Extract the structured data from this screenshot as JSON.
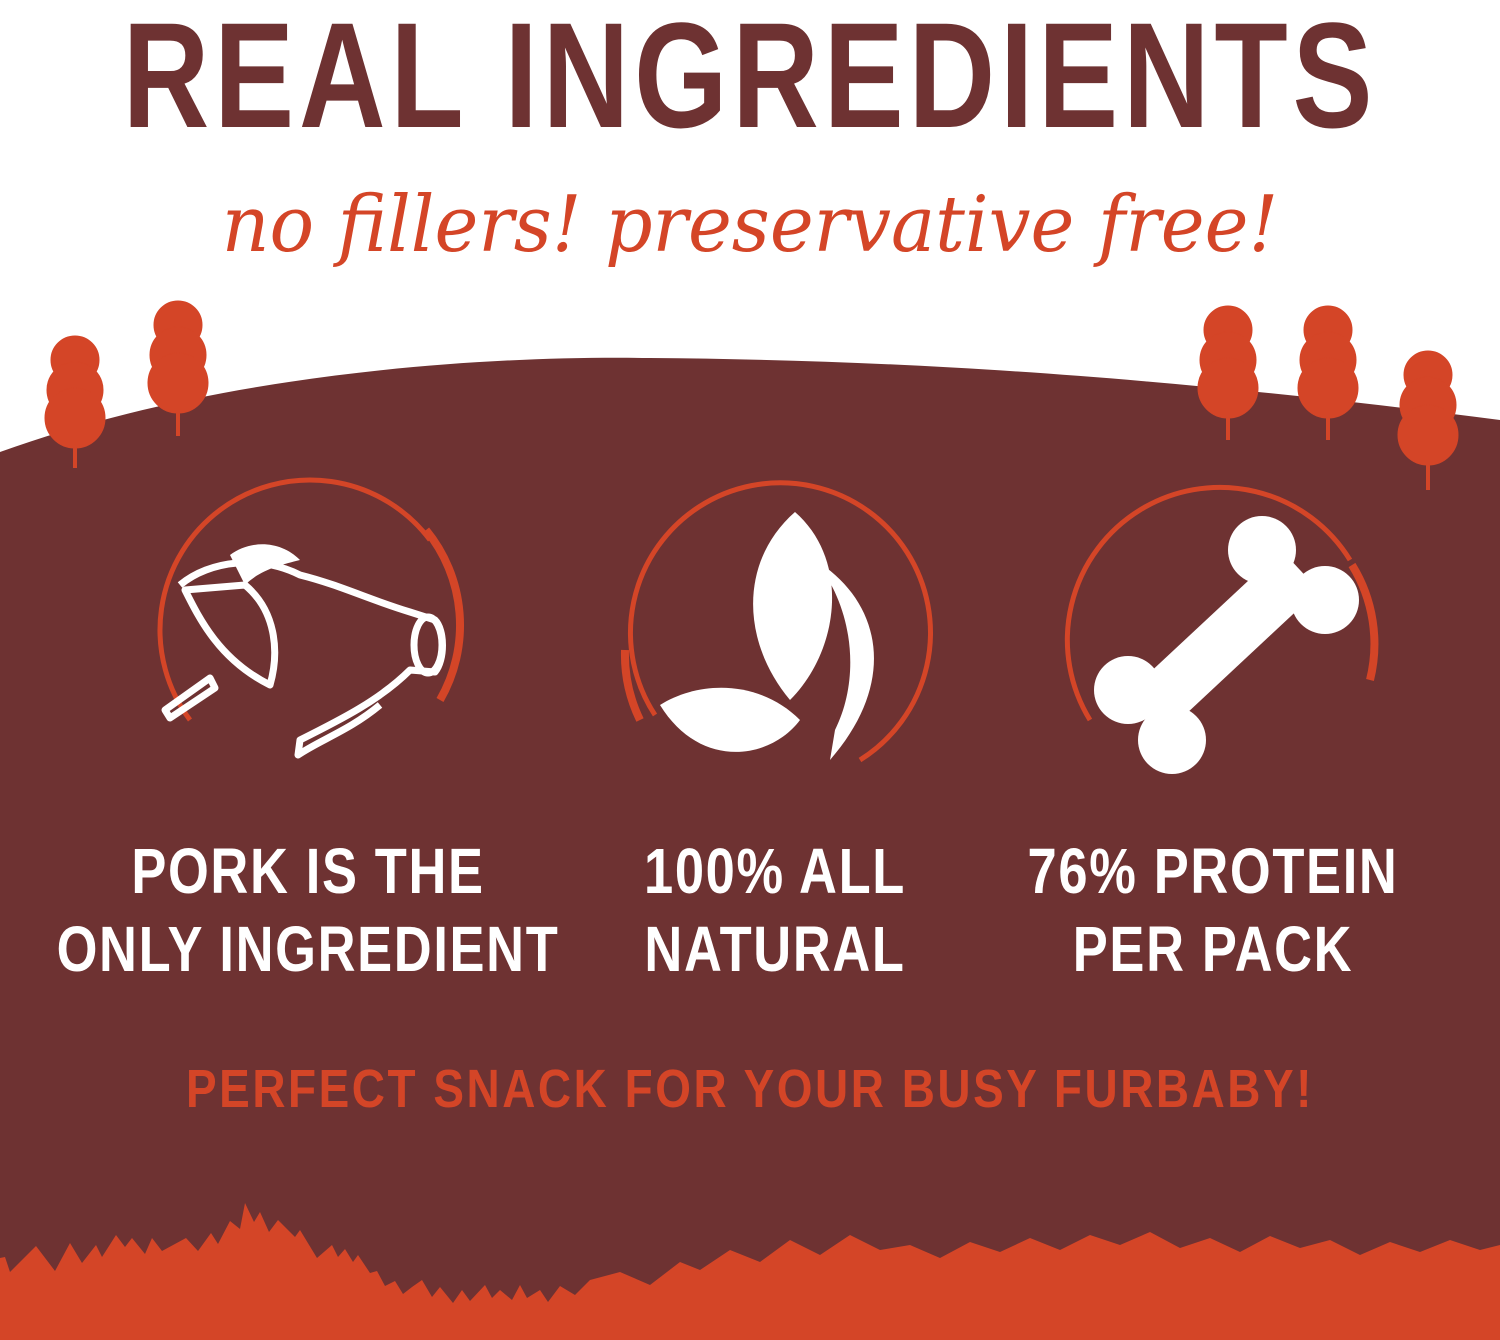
{
  "header": {
    "title": "REAL INGREDIENTS",
    "subtitle": "no fillers! preservative free!"
  },
  "features": [
    {
      "icon": "pig-icon",
      "line1": "PORK IS THE",
      "line2": "ONLY INGREDIENT"
    },
    {
      "icon": "leaf-icon",
      "line1": "100% ALL",
      "line2": "NATURAL"
    },
    {
      "icon": "bone-icon",
      "line1": "76% PROTEIN",
      "line2": "PER PACK"
    }
  ],
  "tagline": "PERFECT SNACK FOR YOUR BUSY FURBABY!",
  "colors": {
    "maroon": "#6e3232",
    "orange": "#d44527",
    "white": "#ffffff"
  }
}
